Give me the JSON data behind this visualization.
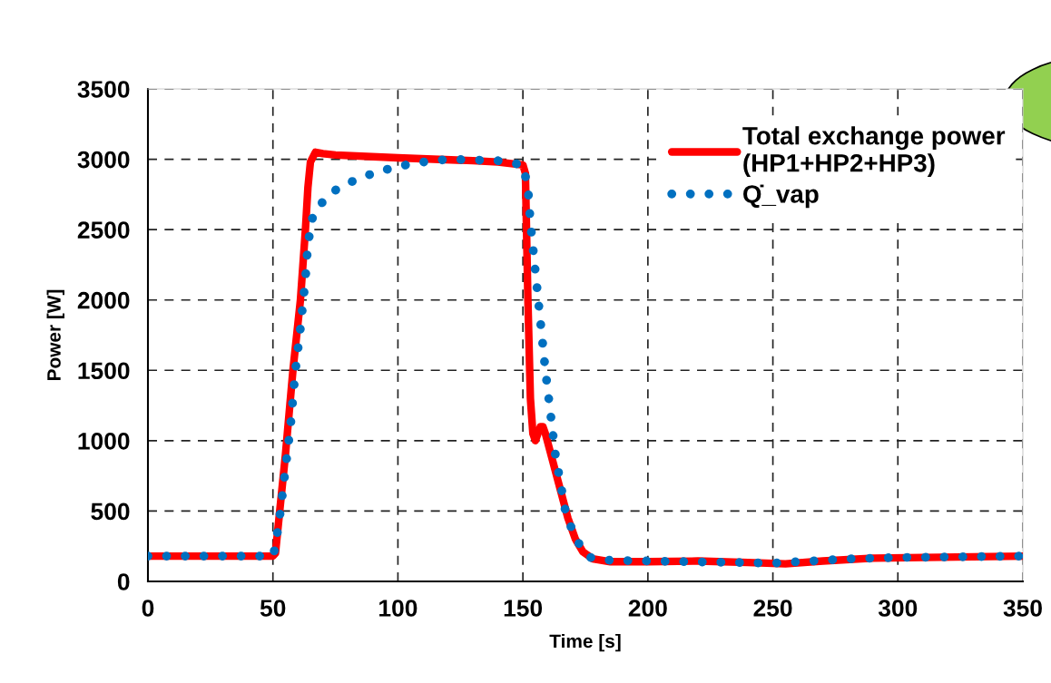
{
  "chart_data": {
    "type": "line",
    "xlabel": "Time [s]",
    "ylabel": "Power [W]",
    "xlim": [
      0,
      350
    ],
    "ylim": [
      0,
      3500
    ],
    "xticks": [
      0,
      50,
      100,
      150,
      200,
      250,
      300,
      350
    ],
    "yticks": [
      0,
      500,
      1000,
      1500,
      2000,
      2500,
      3000,
      3500
    ],
    "grid": true,
    "legend": "top right",
    "series": [
      {
        "name": "Total exchange power\n(HP1+HP2+HP3)",
        "color": "#ff0000",
        "line_style": "solid",
        "x": [
          0,
          50,
          51,
          55,
          58,
          61,
          63,
          64,
          65,
          67,
          70,
          75,
          100,
          130,
          140,
          150,
          151,
          152,
          153,
          154,
          155,
          156,
          157,
          158,
          159,
          162,
          165,
          168,
          171,
          174,
          178,
          185,
          200,
          220,
          240,
          255,
          270,
          290,
          310,
          330,
          350
        ],
        "values": [
          180,
          180,
          200,
          900,
          1500,
          2000,
          2500,
          2800,
          2980,
          3050,
          3040,
          3030,
          3010,
          2990,
          2980,
          2960,
          2900,
          2000,
          1300,
          1050,
          1000,
          1050,
          1100,
          1100,
          1050,
          850,
          650,
          450,
          300,
          210,
          160,
          140,
          140,
          145,
          135,
          125,
          145,
          165,
          170,
          175,
          180
        ]
      },
      {
        "name": "Q̇_vap",
        "color": "#0070c0",
        "line_style": "dotted",
        "x": [
          0,
          50,
          51,
          53,
          55,
          57,
          59,
          61,
          63,
          64,
          66,
          70,
          75,
          80,
          90,
          100,
          110,
          120,
          140,
          150,
          152,
          153,
          155,
          157,
          159,
          161,
          163,
          165,
          167,
          170,
          173,
          177,
          185,
          200,
          250,
          260,
          280,
          300,
          350
        ],
        "values": [
          180,
          180,
          250,
          500,
          800,
          1100,
          1500,
          1800,
          2150,
          2400,
          2600,
          2700,
          2780,
          2830,
          2900,
          2950,
          2980,
          3000,
          2990,
          2960,
          2800,
          2550,
          2200,
          1850,
          1500,
          1200,
          900,
          700,
          500,
          350,
          250,
          170,
          150,
          145,
          130,
          140,
          160,
          170,
          180
        ]
      }
    ]
  }
}
